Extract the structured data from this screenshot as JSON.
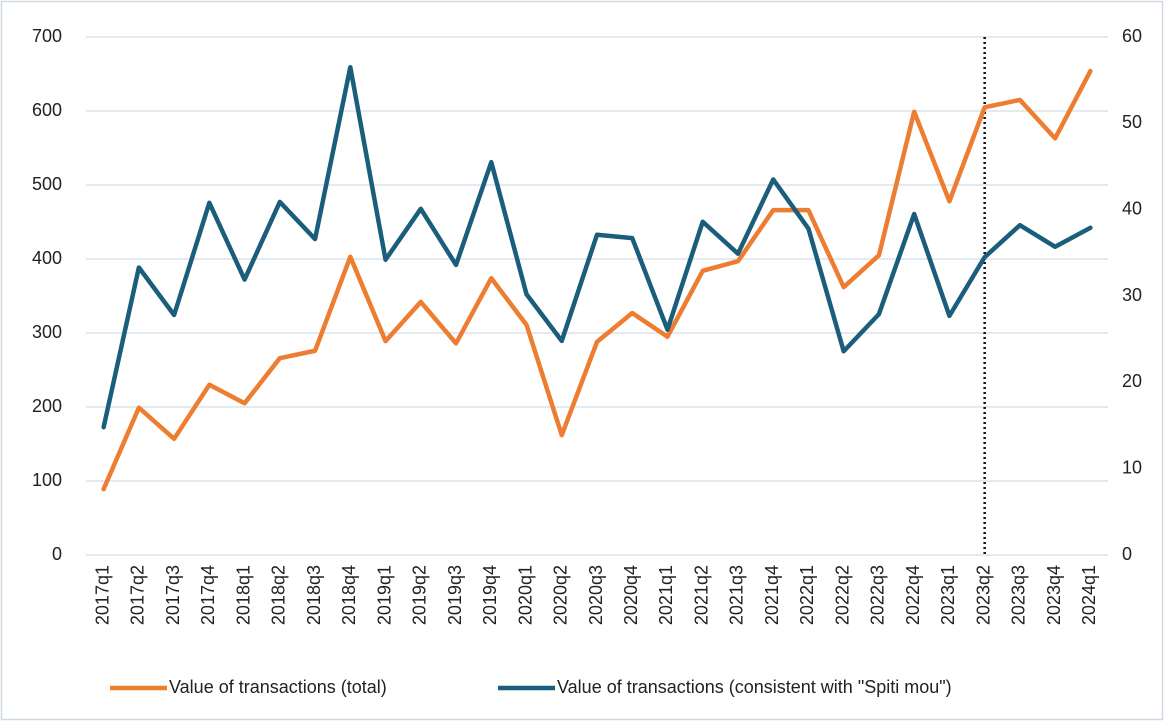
{
  "chart_data": {
    "type": "line",
    "categories": [
      "2017q1",
      "2017q2",
      "2017q3",
      "2017q4",
      "2018q1",
      "2018q2",
      "2018q3",
      "2018q4",
      "2019q1",
      "2019q2",
      "2019q3",
      "2019q4",
      "2020q1",
      "2020q2",
      "2020q3",
      "2020q4",
      "2021q1",
      "2021q2",
      "2021q3",
      "2021q4",
      "2022q1",
      "2022q2",
      "2022q3",
      "2022q4",
      "2023q1",
      "2023q2",
      "2023q3",
      "2023q4",
      "2024q1"
    ],
    "series": [
      {
        "name": "Value of transactions (total)",
        "color": "#ed7d31",
        "values": [
          89,
          199,
          157,
          230,
          205,
          266,
          276,
          403,
          289,
          342,
          286,
          374,
          311,
          162,
          288,
          327,
          295,
          384,
          397,
          466,
          466,
          362,
          405,
          599,
          478,
          605,
          615,
          563,
          654
        ]
      },
      {
        "name": "Value of transactions (consistent with \"Spiti mou\")",
        "color": "#1b5e7b",
        "axis": "y2",
        "values": [
          14.8,
          33.3,
          27.8,
          40.8,
          31.9,
          40.9,
          36.6,
          56.5,
          34.2,
          40.1,
          33.6,
          45.5,
          30.2,
          24.8,
          37.1,
          36.7,
          26.1,
          38.6,
          34.9,
          43.5,
          37.8,
          23.6,
          27.9,
          39.5,
          27.7,
          34.5,
          38.2,
          35.7,
          37.9
        ]
      }
    ],
    "ylim": [
      0,
      700
    ],
    "yticks": [
      0,
      100,
      200,
      300,
      400,
      500,
      600,
      700
    ],
    "y2lim": [
      0,
      60
    ],
    "y2ticks": [
      0,
      10,
      20,
      30,
      40,
      50,
      60
    ],
    "grid": true,
    "legend": "bottom",
    "vline": "2023q2"
  }
}
